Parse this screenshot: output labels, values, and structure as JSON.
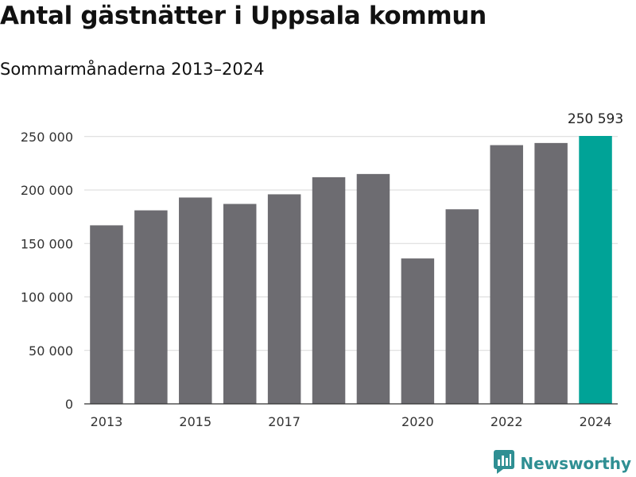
{
  "title": "Antal gästnätter i Uppsala kommun",
  "subtitle": "Sommarmånaderna 2013–2024",
  "brand": "Newsworthy",
  "colors": {
    "bar": "#6d6c71",
    "highlight": "#00a397",
    "grid": "#d9d9d9",
    "axis": "#333333",
    "brand": "#2f8f93"
  },
  "chart_data": {
    "type": "bar",
    "categories": [
      "2013",
      "2014",
      "2015",
      "2016",
      "2017",
      "2018",
      "2019",
      "2020",
      "2021",
      "2022",
      "2023",
      "2024"
    ],
    "values": [
      167000,
      181000,
      193000,
      187000,
      196000,
      212000,
      215000,
      136000,
      182000,
      242000,
      244000,
      250593
    ],
    "x_tick_labels": [
      "2013",
      "",
      "2015",
      "",
      "2017",
      "",
      "",
      "2020",
      "",
      "2022",
      "",
      "2024"
    ],
    "y_ticks": [
      0,
      50000,
      100000,
      150000,
      200000,
      250000
    ],
    "y_tick_labels": [
      "0",
      "50 000",
      "100 000",
      "150 000",
      "200 000",
      "250 000"
    ],
    "ylim": [
      0,
      250593
    ],
    "highlight_index": 11,
    "annotations": [
      {
        "index": 11,
        "text": "250 593"
      }
    ],
    "xlabel": "",
    "ylabel": "",
    "grid": true,
    "legend": "none"
  }
}
